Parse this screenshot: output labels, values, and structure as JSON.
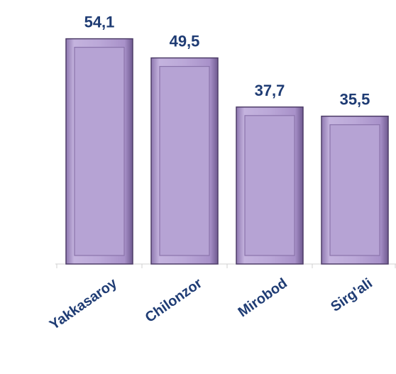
{
  "chart_data": {
    "type": "bar",
    "categories": [
      "Yakkasaroy",
      "Chilonzor",
      "Mirobod",
      "Sirg'ali"
    ],
    "values": [
      54.1,
      49.5,
      37.7,
      35.5
    ],
    "value_labels": [
      "54,1",
      "49,5",
      "37,7",
      "35,5"
    ],
    "color": "#b6a3d4",
    "ylim": [
      0,
      60
    ]
  }
}
